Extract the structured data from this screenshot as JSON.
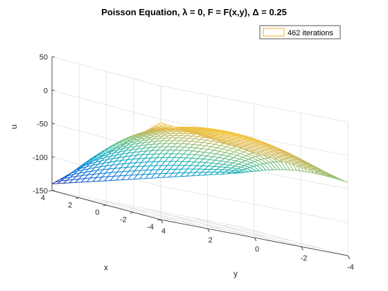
{
  "chart_data": {
    "type": "surface",
    "title": "Poisson Equation, λ = 0, F = F(x,y), Δ = 0.25",
    "xlabel": "x",
    "ylabel": "y",
    "zlabel": "u",
    "xlim": [
      -4,
      4
    ],
    "ylim": [
      -4,
      4
    ],
    "zlim": [
      -150,
      50
    ],
    "x_ticks": [
      -4,
      -2,
      0,
      2,
      4
    ],
    "y_ticks": [
      -4,
      -2,
      0,
      2,
      4
    ],
    "z_ticks": [
      -150,
      -100,
      -50,
      0,
      50
    ],
    "x_tick_labels": [
      "-4",
      "-2",
      "0",
      "2",
      "4"
    ],
    "y_tick_labels": [
      "-4",
      "-2",
      "0",
      "2",
      "4"
    ],
    "z_tick_labels": [
      "-150",
      "-100",
      "-50",
      "0",
      "50"
    ],
    "grid": true,
    "colormap": "parula",
    "grid_spacing": 0.25,
    "corner_values": {
      "x=-4,y=-4": -40,
      "x=-4,y=4": -5,
      "x=4,y=-4": -70,
      "x=4,y=4": -140
    },
    "legend": {
      "location": "top-right",
      "entries": [
        "462 iterations"
      ],
      "swatch_color": "#edb120"
    }
  }
}
